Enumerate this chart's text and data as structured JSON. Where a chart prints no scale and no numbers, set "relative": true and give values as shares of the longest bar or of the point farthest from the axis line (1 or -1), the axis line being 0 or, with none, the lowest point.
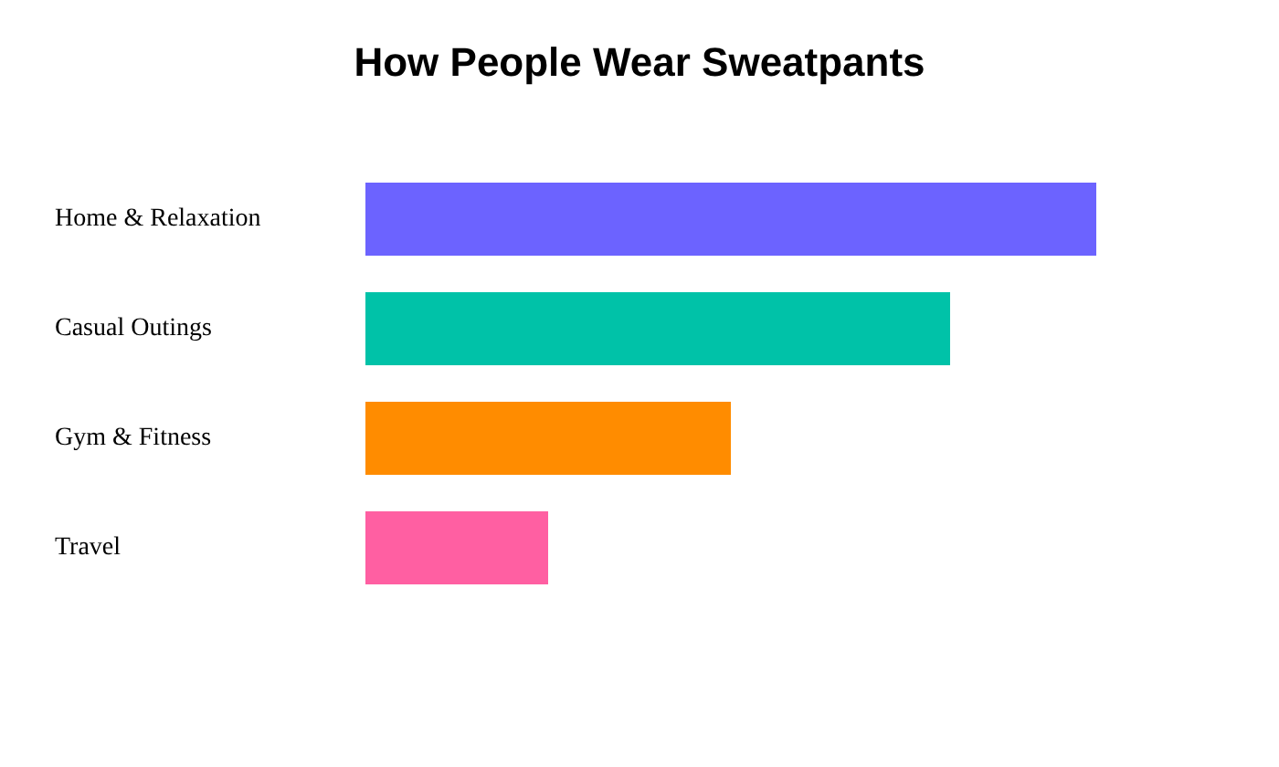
{
  "chart_data": {
    "type": "bar",
    "orientation": "horizontal",
    "relative": true,
    "title": "How People Wear Sweatpants",
    "categories": [
      "Home & Relaxation",
      "Casual Outings",
      "Gym & Fitness",
      "Travel"
    ],
    "values": [
      1,
      0.8,
      0.5,
      0.25
    ],
    "colors": [
      "#6c63ff",
      "#00c2a8",
      "#ff8c00",
      "#ff5fa2"
    ]
  }
}
